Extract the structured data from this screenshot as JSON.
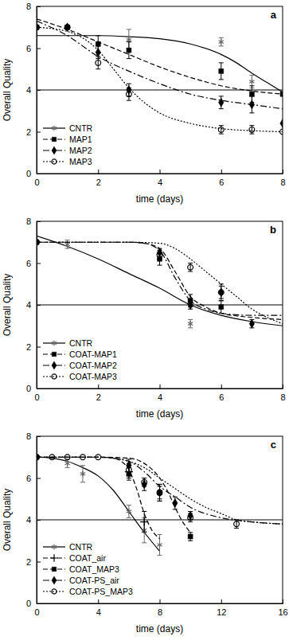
{
  "chart_data": [
    {
      "type": "line",
      "panel_label": "a",
      "x_label": "time (days)",
      "y_label": "Overall Quality",
      "xlim": [
        0,
        8
      ],
      "ylim": [
        0,
        8
      ],
      "xticks": [
        0,
        2,
        4,
        6,
        8
      ],
      "yticks": [
        0,
        2,
        4,
        6,
        8
      ],
      "threshold": 4,
      "legend": "lower left",
      "series": [
        {
          "name": "CNTR",
          "color": "#666666",
          "marker": "asterisk",
          "line_style": "solid",
          "x": [
            0,
            3,
            6,
            7,
            8
          ],
          "values": [
            7.0,
            6.4,
            6.3,
            4.4,
            3.8
          ],
          "errors": [
            0,
            0.5,
            0.2,
            0.3,
            0
          ],
          "fit": {
            "x": [
              0,
              1,
              2,
              3,
              4,
              5,
              6,
              6.5,
              7,
              7.5,
              8
            ],
            "values": [
              6.6,
              6.6,
              6.6,
              6.55,
              6.45,
              6.2,
              5.7,
              5.3,
              4.8,
              4.35,
              3.9
            ]
          }
        },
        {
          "name": "MAP1",
          "color": "#000000",
          "marker": "square",
          "line_style": "dashed",
          "x": [
            0,
            1,
            2,
            3,
            6,
            7,
            8
          ],
          "values": [
            7.0,
            7.0,
            6.2,
            5.9,
            4.9,
            3.8,
            3.8
          ],
          "errors": [
            0,
            0,
            0.4,
            0.4,
            0.4,
            0.4,
            0
          ],
          "fit": {
            "x": [
              0,
              1,
              2,
              3,
              4,
              5,
              6,
              7,
              8
            ],
            "values": [
              7.4,
              6.9,
              6.3,
              5.7,
              5.1,
              4.6,
              4.2,
              3.95,
              3.8
            ]
          }
        },
        {
          "name": "MAP2",
          "color": "#000000",
          "marker": "diamond",
          "line_style": "dashdot",
          "x": [
            0,
            1,
            2,
            3,
            6,
            7,
            8
          ],
          "values": [
            7.0,
            7.0,
            5.8,
            4.0,
            3.4,
            3.3,
            2.4
          ],
          "errors": [
            0,
            0,
            0.3,
            0.3,
            0.3,
            0.4,
            0
          ],
          "fit": {
            "x": [
              0,
              1,
              2,
              3,
              4,
              5,
              6,
              7,
              8
            ],
            "values": [
              7.3,
              6.6,
              5.6,
              4.9,
              4.3,
              3.8,
              3.5,
              3.3,
              3.1
            ]
          }
        },
        {
          "name": "MAP3",
          "color": "#000000",
          "marker": "circle",
          "line_style": "dotted",
          "x": [
            0,
            1,
            2,
            3,
            6,
            7,
            8
          ],
          "values": [
            7.0,
            7.0,
            5.3,
            3.8,
            2.1,
            2.1,
            2.0
          ],
          "errors": [
            0,
            0,
            0.3,
            0.3,
            0.2,
            0.2,
            0
          ],
          "fit": {
            "x": [
              0,
              1,
              2,
              2.5,
              3,
              3.5,
              4,
              5,
              6,
              7,
              8
            ],
            "values": [
              7.0,
              6.8,
              5.9,
              5.0,
              4.1,
              3.4,
              2.9,
              2.4,
              2.15,
              2.05,
              2.0
            ]
          }
        }
      ]
    },
    {
      "type": "line",
      "panel_label": "b",
      "x_label": "time (days)",
      "y_label": "Overall Quality",
      "xlim": [
        0,
        8
      ],
      "ylim": [
        0,
        8
      ],
      "xticks": [
        0,
        2,
        4,
        6,
        8
      ],
      "yticks": [
        0,
        2,
        4,
        6,
        8
      ],
      "threshold": 4,
      "legend": "lower left",
      "series": [
        {
          "name": "CNTR",
          "color": "#666666",
          "marker": "asterisk",
          "line_style": "solid",
          "x": [
            0,
            1,
            5
          ],
          "values": [
            7.0,
            6.9,
            3.1
          ],
          "errors": [
            0,
            0.2,
            0.2
          ],
          "fit": {
            "x": [
              0,
              1,
              2,
              3,
              4,
              5,
              6,
              7,
              8
            ],
            "values": [
              7.3,
              6.8,
              6.2,
              5.5,
              4.8,
              4.0,
              3.5,
              3.2,
              3.0
            ]
          }
        },
        {
          "name": "COAT-MAP1",
          "color": "#000000",
          "marker": "square",
          "line_style": "dashed",
          "x": [
            0,
            4,
            5,
            6
          ],
          "values": [
            7.0,
            6.2,
            4.2,
            3.9
          ],
          "errors": [
            0,
            0.3,
            0.3,
            0.3
          ],
          "fit": {
            "x": [
              0,
              1,
              2,
              3,
              3.5,
              4,
              4.5,
              5,
              5.5,
              6,
              7,
              8
            ],
            "values": [
              7.0,
              7.0,
              7.0,
              7.0,
              6.95,
              6.7,
              5.6,
              4.4,
              3.9,
              3.6,
              3.4,
              3.3
            ]
          }
        },
        {
          "name": "COAT-MAP2",
          "color": "#000000",
          "marker": "diamond",
          "line_style": "dashdot",
          "x": [
            0,
            4,
            5,
            6,
            7
          ],
          "values": [
            7.0,
            6.5,
            4.0,
            4.6,
            3.1
          ],
          "errors": [
            0,
            0.2,
            0.2,
            0.4,
            0.2
          ],
          "fit": {
            "x": [
              0,
              1,
              2,
              3,
              3.5,
              4,
              4.5,
              5,
              5.5,
              6,
              7,
              8
            ],
            "values": [
              7.0,
              7.0,
              7.0,
              7.0,
              6.95,
              6.6,
              5.3,
              4.2,
              3.8,
              3.6,
              3.5,
              3.5
            ]
          }
        },
        {
          "name": "COAT-MAP3",
          "color": "#000000",
          "marker": "circle",
          "line_style": "dotted",
          "x": [
            0,
            4,
            5,
            6
          ],
          "values": [
            7.0,
            6.4,
            5.8,
            4.6
          ],
          "errors": [
            0,
            0.2,
            0.2,
            0.3
          ],
          "fit": {
            "x": [
              0,
              1,
              2,
              3,
              4,
              4.5,
              5,
              5.5,
              6,
              6.5,
              7,
              7.5,
              8
            ],
            "values": [
              7.0,
              7.0,
              7.0,
              7.0,
              6.95,
              6.7,
              6.2,
              5.6,
              5.0,
              4.4,
              3.8,
              3.4,
              3.1
            ]
          }
        }
      ]
    },
    {
      "type": "line",
      "panel_label": "c",
      "x_label": "time (days)",
      "y_label": "Overall Quality",
      "xlim": [
        0,
        16
      ],
      "ylim": [
        0,
        8
      ],
      "xticks": [
        0,
        4,
        8,
        12,
        16
      ],
      "yticks": [
        0,
        2,
        4,
        6,
        8
      ],
      "threshold": 4,
      "legend": "lower left",
      "series": [
        {
          "name": "CNTR",
          "color": "#666666",
          "marker": "asterisk",
          "line_style": "solid",
          "x": [
            0,
            2,
            3,
            6,
            7,
            8
          ],
          "values": [
            7.0,
            6.7,
            6.2,
            4.4,
            3.5,
            2.8
          ],
          "errors": [
            0,
            0.2,
            0.4,
            0.3,
            0.6,
            0.5
          ],
          "fit": {
            "x": [
              0,
              1,
              2,
              3,
              4,
              5,
              6,
              7,
              8
            ],
            "values": [
              7.0,
              6.95,
              6.8,
              6.5,
              6.1,
              5.4,
              4.4,
              3.4,
              2.5
            ]
          }
        },
        {
          "name": "COAT_air",
          "color": "#000000",
          "marker": "plus",
          "line_style": "dashed",
          "x": [
            0,
            6,
            7
          ],
          "values": [
            7.0,
            6.3,
            3.9
          ],
          "errors": [
            0,
            0.3,
            0.5
          ],
          "fit": {
            "x": [
              0,
              2,
              4,
              5,
              5.5,
              6,
              6.5,
              7,
              7.5,
              8
            ],
            "values": [
              7.0,
              7.0,
              7.0,
              6.95,
              6.8,
              6.4,
              5.5,
              4.3,
              3.5,
              3.1
            ]
          }
        },
        {
          "name": "COAT_MAP3",
          "color": "#000000",
          "marker": "square",
          "line_style": "dashed",
          "x": [
            0,
            6,
            8,
            10
          ],
          "values": [
            7.0,
            6.2,
            5.3,
            3.2
          ],
          "errors": [
            0,
            0.3,
            0.4,
            0.2
          ],
          "fit": {
            "x": [
              0,
              2,
              4,
              6,
              7,
              8,
              8.5,
              9,
              9.5,
              10
            ],
            "values": [
              7.0,
              7.0,
              7.0,
              6.95,
              6.7,
              6.0,
              5.4,
              4.6,
              3.9,
              3.4
            ]
          }
        },
        {
          "name": "COAT-PS_air",
          "color": "#000000",
          "marker": "diamond",
          "line_style": "dashdot",
          "x": [
            0,
            6,
            7,
            8,
            9,
            10
          ],
          "values": [
            7.0,
            6.6,
            5.7,
            5.3,
            4.8,
            4.2
          ],
          "errors": [
            0,
            0.3,
            0.3,
            0.4,
            0.3,
            0.2
          ],
          "fit": {
            "x": [
              0,
              2,
              4,
              5,
              6,
              7,
              8,
              9,
              10,
              12,
              14,
              16
            ],
            "values": [
              7.0,
              7.0,
              7.0,
              6.95,
              6.8,
              6.3,
              5.6,
              5.1,
              4.6,
              4.1,
              3.9,
              3.8
            ]
          }
        },
        {
          "name": "COAT-PS_MAP3",
          "color": "#000000",
          "marker": "circle",
          "line_style": "dotted",
          "x": [
            0,
            1,
            2,
            3,
            4,
            6,
            7,
            8,
            10,
            13
          ],
          "values": [
            7.0,
            7.0,
            7.0,
            7.0,
            7.0,
            6.4,
            5.8,
            5.3,
            4.1,
            3.8
          ],
          "errors": [
            0,
            0,
            0,
            0,
            0,
            0.3,
            0.2,
            0.3,
            0.2,
            0.2
          ],
          "fit": {
            "x": [
              0,
              2,
              4,
              5,
              6,
              7,
              8,
              9,
              10,
              11,
              12,
              13,
              14,
              16
            ],
            "values": [
              7.0,
              7.0,
              7.0,
              6.95,
              6.8,
              6.5,
              6.0,
              5.5,
              5.0,
              4.6,
              4.3,
              4.0,
              3.9,
              3.8
            ]
          }
        }
      ]
    }
  ]
}
